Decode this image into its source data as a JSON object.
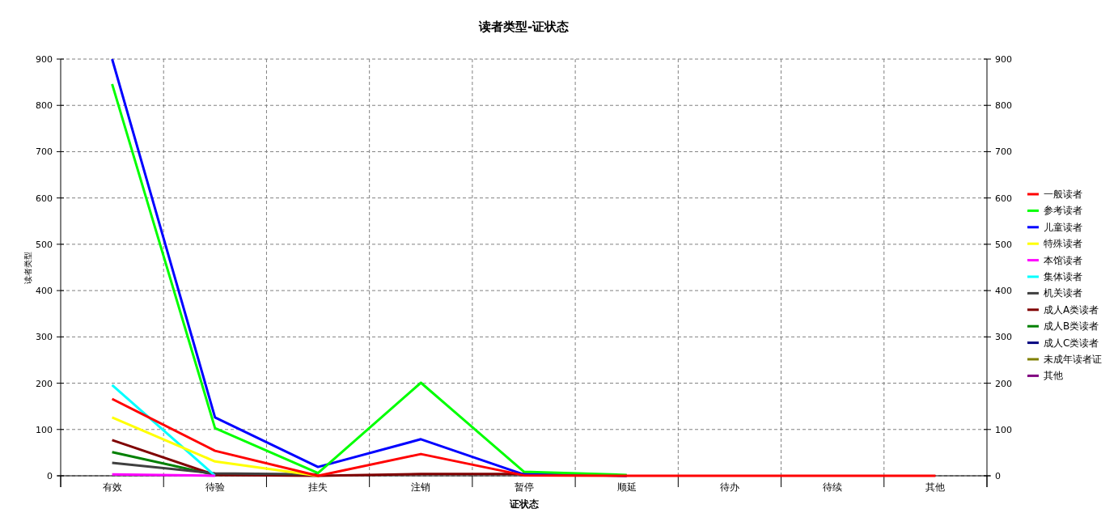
{
  "chart_data": {
    "type": "line",
    "title": "读者类型-证状态",
    "xlabel": "证状态",
    "ylabel": "读者类型",
    "categories": [
      "有效",
      "待验",
      "挂失",
      "注销",
      "暂停",
      "顺延",
      "待办",
      "待续",
      "其他"
    ],
    "series": [
      {
        "name": "一般读者",
        "color": "#ff0000",
        "values": [
          166,
          54,
          0,
          47,
          1,
          0,
          0,
          0,
          0
        ]
      },
      {
        "name": "参考读者",
        "color": "#00ff00",
        "values": [
          846,
          103,
          6,
          201,
          9,
          2,
          null,
          null,
          null
        ]
      },
      {
        "name": "儿童读者",
        "color": "#0000ff",
        "values": [
          900,
          126,
          19,
          79,
          3,
          0,
          null,
          null,
          null
        ]
      },
      {
        "name": "特殊读者",
        "color": "#ffff00",
        "values": [
          126,
          31,
          0,
          null,
          null,
          null,
          null,
          null,
          null
        ]
      },
      {
        "name": "本馆读者",
        "color": "#ff00ff",
        "values": [
          3,
          0,
          null,
          null,
          null,
          null,
          null,
          null,
          null
        ]
      },
      {
        "name": "集体读者",
        "color": "#00ffff",
        "values": [
          196,
          0,
          null,
          null,
          null,
          null,
          null,
          null,
          null
        ]
      },
      {
        "name": "机关读者",
        "color": "#404040",
        "values": [
          28,
          5,
          3,
          null,
          null,
          null,
          null,
          null,
          null
        ]
      },
      {
        "name": "成人A类读者",
        "color": "#800000",
        "values": [
          77,
          2,
          0,
          4,
          4,
          0,
          null,
          null,
          null
        ]
      },
      {
        "name": "成人B类读者",
        "color": "#008000",
        "values": [
          51,
          2,
          null,
          null,
          null,
          null,
          null,
          null,
          null
        ]
      },
      {
        "name": "成人C类读者",
        "color": "#000080",
        "values": [
          null,
          null,
          null,
          null,
          null,
          null,
          null,
          null,
          null
        ]
      },
      {
        "name": "未成年读者证",
        "color": "#808000",
        "values": [
          null,
          null,
          null,
          null,
          null,
          null,
          null,
          null,
          null
        ]
      },
      {
        "name": "其他",
        "color": "#800080",
        "values": [
          null,
          null,
          null,
          null,
          null,
          null,
          null,
          null,
          null
        ]
      }
    ],
    "ylim": [
      0,
      900
    ],
    "yticks": [
      0,
      100,
      200,
      300,
      400,
      500,
      600,
      700,
      800,
      900
    ],
    "y2lim": [
      0,
      900
    ],
    "y2ticks": [
      0,
      100,
      200,
      300,
      400,
      500,
      600,
      700,
      800,
      900
    ],
    "grid": true,
    "legend": "right",
    "marker": "none",
    "line_style": "solid"
  }
}
